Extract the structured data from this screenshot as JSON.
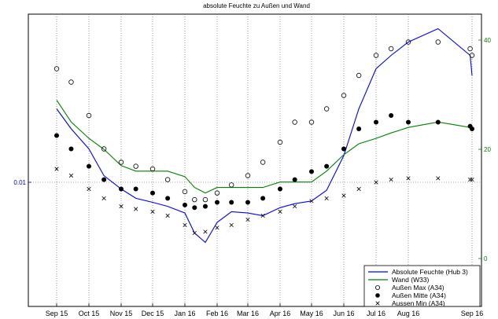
{
  "chart_data": {
    "type": "line",
    "title": "absolute Feuchte zu Außen und Wand",
    "xlabel": "",
    "ylabel": "",
    "x_ticks": [
      "Sep 15",
      "Oct 15",
      "Nov 15",
      "Dec 15",
      "Jan 16",
      "Feb 16",
      "Mar 16",
      "Apr 16",
      "May 16",
      "Jun 16",
      "Jul 16",
      "Aug 16",
      "Sep 16"
    ],
    "y_left_ticks": [
      "0.01"
    ],
    "y_right_ticks": [
      "0",
      "20",
      "40"
    ],
    "grid": "dotted",
    "legend_position": "bottom-right",
    "colors": {
      "absolute_feuchte": "#0000ff",
      "wand": "#008000",
      "markers": "#000000",
      "left_axis": "#0000cc",
      "right_axis": "#008000"
    },
    "series": [
      {
        "name": "Absolute Feuchte (Hub 3)",
        "marker": "line",
        "x": [
          "Sep 15",
          "Sep 22",
          "Oct 1",
          "Oct 15",
          "Nov 1",
          "Nov 15",
          "Dec 1",
          "Dec 15",
          "Jan 1",
          "Jan 10",
          "Jan 20",
          "Feb 1",
          "Feb 15",
          "Mar 1",
          "Mar 15",
          "Apr 1",
          "Apr 15",
          "May 1",
          "May 15",
          "Jun 1",
          "Jun 15",
          "Jul 1",
          "Jul 15",
          "Aug 1",
          "Aug 15",
          "Sep 1",
          "Sep 16"
        ],
        "y": [
          0.0155,
          0.014,
          0.0125,
          0.0105,
          0.0095,
          0.0088,
          0.0085,
          0.0082,
          0.0077,
          0.0062,
          0.0055,
          0.007,
          0.0078,
          0.0077,
          0.0075,
          0.0081,
          0.0084,
          0.0086,
          0.0094,
          0.012,
          0.0155,
          0.0185,
          0.0195,
          0.0205,
          0.0215,
          0.0195,
          0.018
        ]
      },
      {
        "name": "Wand (W33)",
        "marker": "line",
        "x": [
          "Sep 15",
          "Sep 22",
          "Oct 1",
          "Oct 15",
          "Nov 1",
          "Nov 15",
          "Dec 1",
          "Dec 15",
          "Jan 1",
          "Jan 10",
          "Jan 20",
          "Feb 1",
          "Feb 15",
          "Mar 1",
          "Mar 15",
          "Apr 1",
          "Apr 15",
          "May 1",
          "May 15",
          "Jun 1",
          "Jun 15",
          "Jul 1",
          "Jul 15",
          "Aug 1",
          "Aug 15",
          "Sep 1",
          "Sep 16"
        ],
        "y": [
          29,
          25,
          22,
          20,
          17,
          16,
          16,
          16,
          15,
          13,
          12,
          13,
          13,
          13,
          13,
          14,
          14,
          14,
          16,
          19,
          21,
          22,
          23,
          24,
          25,
          24,
          24
        ]
      },
      {
        "name": "Außen Max (A34)",
        "marker": "open-circle",
        "x": [
          "Sep 15",
          "Sep 22",
          "Oct 1",
          "Oct 15",
          "Nov 1",
          "Nov 15",
          "Dec 1",
          "Dec 15",
          "Jan 1",
          "Jan 10",
          "Jan 20",
          "Feb 1",
          "Feb 15",
          "Mar 1",
          "Mar 15",
          "Apr 1",
          "Apr 15",
          "May 1",
          "May 15",
          "Jun 1",
          "Jun 15",
          "Jul 1",
          "Jul 15",
          "Aug 1",
          "Aug 15",
          "Sep 1",
          "Sep 16"
        ],
        "y": [
          0.0185,
          0.0175,
          0.015,
          0.0125,
          0.0115,
          0.0112,
          0.011,
          0.0102,
          0.0093,
          0.0087,
          0.0087,
          0.0092,
          0.0098,
          0.0105,
          0.0115,
          0.013,
          0.0145,
          0.0145,
          0.0155,
          0.0165,
          0.018,
          0.0195,
          0.02,
          0.0205,
          0.0205,
          0.02,
          0.0195
        ]
      },
      {
        "name": "Außen Mitte (A34)",
        "marker": "filled-circle",
        "x": [
          "Sep 15",
          "Sep 22",
          "Oct 1",
          "Oct 15",
          "Nov 1",
          "Nov 15",
          "Dec 1",
          "Dec 15",
          "Jan 1",
          "Jan 10",
          "Jan 20",
          "Feb 1",
          "Feb 15",
          "Mar 1",
          "Mar 15",
          "Apr 1",
          "Apr 15",
          "May 1",
          "May 15",
          "Jun 1",
          "Jun 15",
          "Jul 1",
          "Jul 15",
          "Aug 1",
          "Aug 15",
          "Sep 1",
          "Sep 16"
        ],
        "y": [
          0.0135,
          0.0125,
          0.0112,
          0.0102,
          0.0095,
          0.0095,
          0.0092,
          0.0088,
          0.0083,
          0.0081,
          0.0082,
          0.0085,
          0.0085,
          0.0085,
          0.0088,
          0.0095,
          0.0102,
          0.0108,
          0.0112,
          0.0125,
          0.014,
          0.0145,
          0.015,
          0.0145,
          0.0145,
          0.0142,
          0.014
        ]
      },
      {
        "name": "Aussen Min (A34)",
        "marker": "cross",
        "x": [
          "Sep 15",
          "Sep 22",
          "Oct 1",
          "Oct 15",
          "Nov 1",
          "Nov 15",
          "Dec 1",
          "Dec 15",
          "Jan 1",
          "Jan 10",
          "Jan 20",
          "Feb 1",
          "Feb 15",
          "Mar 1",
          "Mar 15",
          "Apr 1",
          "Apr 15",
          "May 1",
          "May 15",
          "Jun 1",
          "Jun 15",
          "Jul 1",
          "Jul 15",
          "Aug 1",
          "Aug 15",
          "Sep 1",
          "Sep 16"
        ],
        "y": [
          0.011,
          0.0105,
          0.0095,
          0.0088,
          0.0082,
          0.008,
          0.0078,
          0.0075,
          0.0068,
          0.0062,
          0.0063,
          0.0066,
          0.0068,
          0.0072,
          0.0075,
          0.0078,
          0.0082,
          0.0086,
          0.0088,
          0.009,
          0.0095,
          0.01,
          0.0102,
          0.0103,
          0.0103,
          0.0102,
          0.0102
        ]
      }
    ]
  }
}
